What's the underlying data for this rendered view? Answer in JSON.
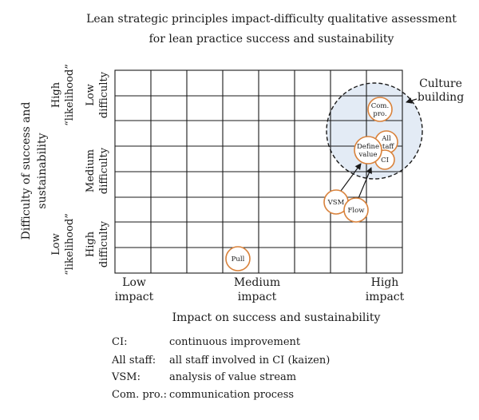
{
  "title": {
    "line1": "Lean strategic principles impact-difficulty qualitative assessment",
    "line2": "for lean practice success and sustainability"
  },
  "y_axis": {
    "title_line1": "Difficulty of success and",
    "title_line2": "sustainability",
    "bands": [
      {
        "line1": "High",
        "line2": "“likelihood”",
        "line3": "Low",
        "line4": "difficulty"
      },
      {
        "line1": "Medium",
        "line2": "difficulty"
      },
      {
        "line1": "Low",
        "line2": "“likelihood”",
        "line3": "High",
        "line4": "difficulty"
      }
    ]
  },
  "x_axis": {
    "title": "Impact on success and sustainability",
    "ticks": [
      {
        "line1": "Low",
        "line2": "impact"
      },
      {
        "line1": "Medium",
        "line2": "impact"
      },
      {
        "line1": "High",
        "line2": "impact"
      }
    ]
  },
  "culture": {
    "line1": "Culture",
    "line2": "building"
  },
  "nodes": {
    "com_pro": {
      "line1": "Com.",
      "line2": "pro."
    },
    "define_value": {
      "line1": "Define",
      "line2": "value"
    },
    "all_staff": {
      "line1": "All",
      "line2": "staff"
    },
    "ci": "CI",
    "vsm": "VSM",
    "flow": "Flow",
    "pull": "Pull"
  },
  "legend": [
    {
      "abbr": "CI:",
      "desc": "continuous improvement"
    },
    {
      "abbr": "All staff:",
      "desc": "all staff involved in CI (kaizen)"
    },
    {
      "abbr": "VSM:",
      "desc": "analysis of value stream"
    },
    {
      "abbr": "Com. pro.:",
      "desc": "communication process"
    }
  ],
  "colors": {
    "node_stroke": "#d9823b",
    "culture_fill": "#e3ebf5",
    "grid": "#1a1a1a"
  }
}
